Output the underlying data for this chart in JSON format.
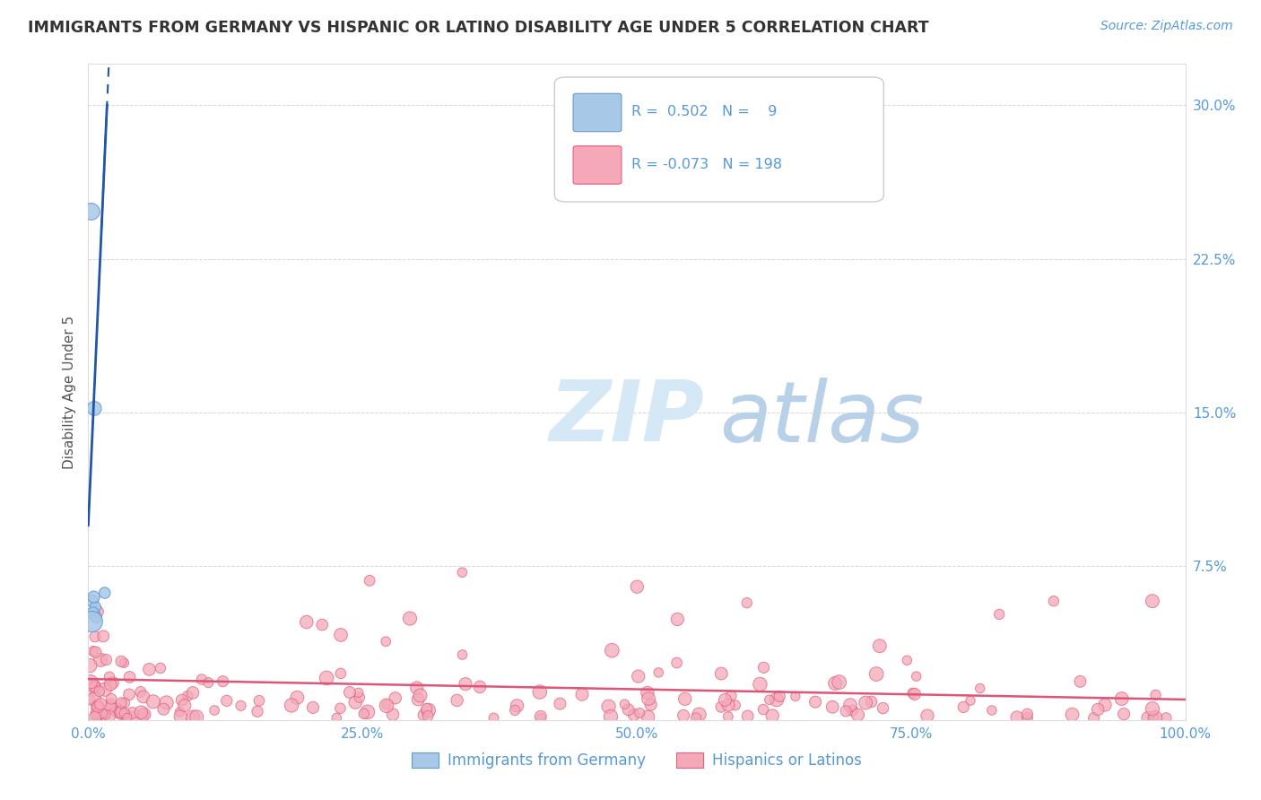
{
  "title": "IMMIGRANTS FROM GERMANY VS HISPANIC OR LATINO DISABILITY AGE UNDER 5 CORRELATION CHART",
  "source": "Source: ZipAtlas.com",
  "ylabel": "Disability Age Under 5",
  "xlim": [
    0,
    100
  ],
  "ylim": [
    0,
    32
  ],
  "yticks": [
    0,
    7.5,
    15.0,
    22.5,
    30.0
  ],
  "ytick_labels": [
    "",
    "7.5%",
    "15.0%",
    "22.5%",
    "30.0%"
  ],
  "xticks": [
    0,
    25,
    50,
    75,
    100
  ],
  "xtick_labels": [
    "0.0%",
    "25.0%",
    "50.0%",
    "75.0%",
    "100.0%"
  ],
  "blue_color": "#A8C8E8",
  "blue_edge_color": "#6699CC",
  "pink_color": "#F4A8B8",
  "pink_edge_color": "#E06080",
  "blue_trend_color": "#2255AA",
  "pink_trend_color": "#DD5577",
  "background_color": "#FFFFFF",
  "grid_color": "#CCCCCC",
  "tick_color": "#5599DD",
  "legend_text_color": "#5599DD",
  "title_color": "#333333",
  "watermark_zip_color": "#C8DCF0",
  "watermark_atlas_color": "#C8DCF0",
  "blue_x": [
    0.28,
    0.55,
    1.5,
    0.38,
    0.65,
    0.45,
    0.72,
    0.35,
    0.5
  ],
  "blue_y": [
    24.8,
    15.2,
    6.2,
    5.8,
    5.5,
    5.2,
    5.0,
    4.8,
    6.0
  ],
  "blue_sizes": [
    180,
    130,
    80,
    90,
    80,
    100,
    80,
    280,
    90
  ],
  "blue_trend_slope": 12.0,
  "blue_trend_intercept": 9.5,
  "blue_trend_solid_x0": 0.0,
  "blue_trend_solid_x1": 1.8,
  "blue_trend_dash_x0": 1.8,
  "blue_trend_dash_x1": 3.0,
  "pink_trend_slope": -0.01,
  "pink_trend_intercept": 2.0
}
